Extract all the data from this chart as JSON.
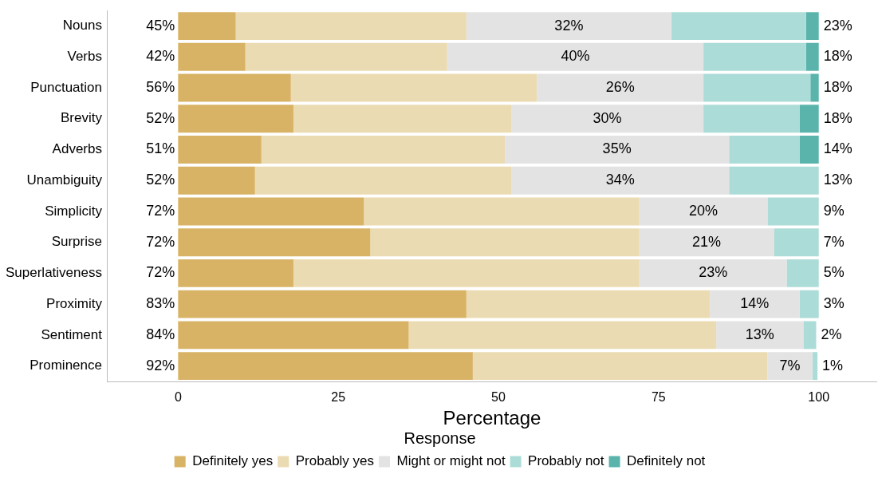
{
  "chart_data": {
    "type": "bar",
    "orientation": "horizontal",
    "stacked": true,
    "xlabel": "Percentage",
    "legend_title": "Response",
    "legend": "bottom",
    "grid": false,
    "categories": [
      "Nouns",
      "Verbs",
      "Punctuation",
      "Brevity",
      "Adverbs",
      "Unambiguity",
      "Simplicity",
      "Surprise",
      "Superlativeness",
      "Proximity",
      "Sentiment",
      "Prominence"
    ],
    "xlim": [
      -11,
      109
    ],
    "xticks": [
      0,
      25,
      50,
      75,
      100
    ],
    "series": [
      {
        "name": "Definitely yes",
        "color": "#d8b365",
        "values": [
          9,
          10.5,
          17.6,
          18,
          13,
          12,
          29,
          30,
          18,
          45,
          36,
          46
        ]
      },
      {
        "name": "Probably yes",
        "color": "#ebdbb2",
        "values": [
          36,
          31.5,
          38.4,
          34,
          38,
          40,
          43,
          42,
          54,
          38,
          48,
          46
        ]
      },
      {
        "name": "Might or might not",
        "color": "#e3e3e3",
        "values": [
          32,
          40,
          26,
          30,
          35,
          34,
          20,
          21,
          23,
          14,
          13.6,
          7
        ]
      },
      {
        "name": "Probably not",
        "color": "#acdcd7",
        "values": [
          21,
          16,
          16.7,
          15,
          11,
          14,
          8,
          7,
          5,
          3,
          2,
          0.8
        ]
      },
      {
        "name": "Definitely not",
        "color": "#5ab4ac",
        "values": [
          2,
          2,
          1.3,
          3,
          3,
          0,
          0,
          0,
          0,
          0,
          0,
          0
        ]
      }
    ],
    "annotations": [
      "45%",
      "32%",
      "23%",
      "42%",
      "40%",
      "18%",
      "56%",
      "26%",
      "18%",
      "52%",
      "30%",
      "18%",
      "51%",
      "35%",
      "14%",
      "52%",
      "34%",
      "13%",
      "72%",
      "20%",
      "9%",
      "72%",
      "21%",
      "7%",
      "72%",
      "23%",
      "5%",
      "83%",
      "14%",
      "3%",
      "84%",
      "13%",
      "2%",
      "92%",
      "7%",
      "1%"
    ]
  }
}
